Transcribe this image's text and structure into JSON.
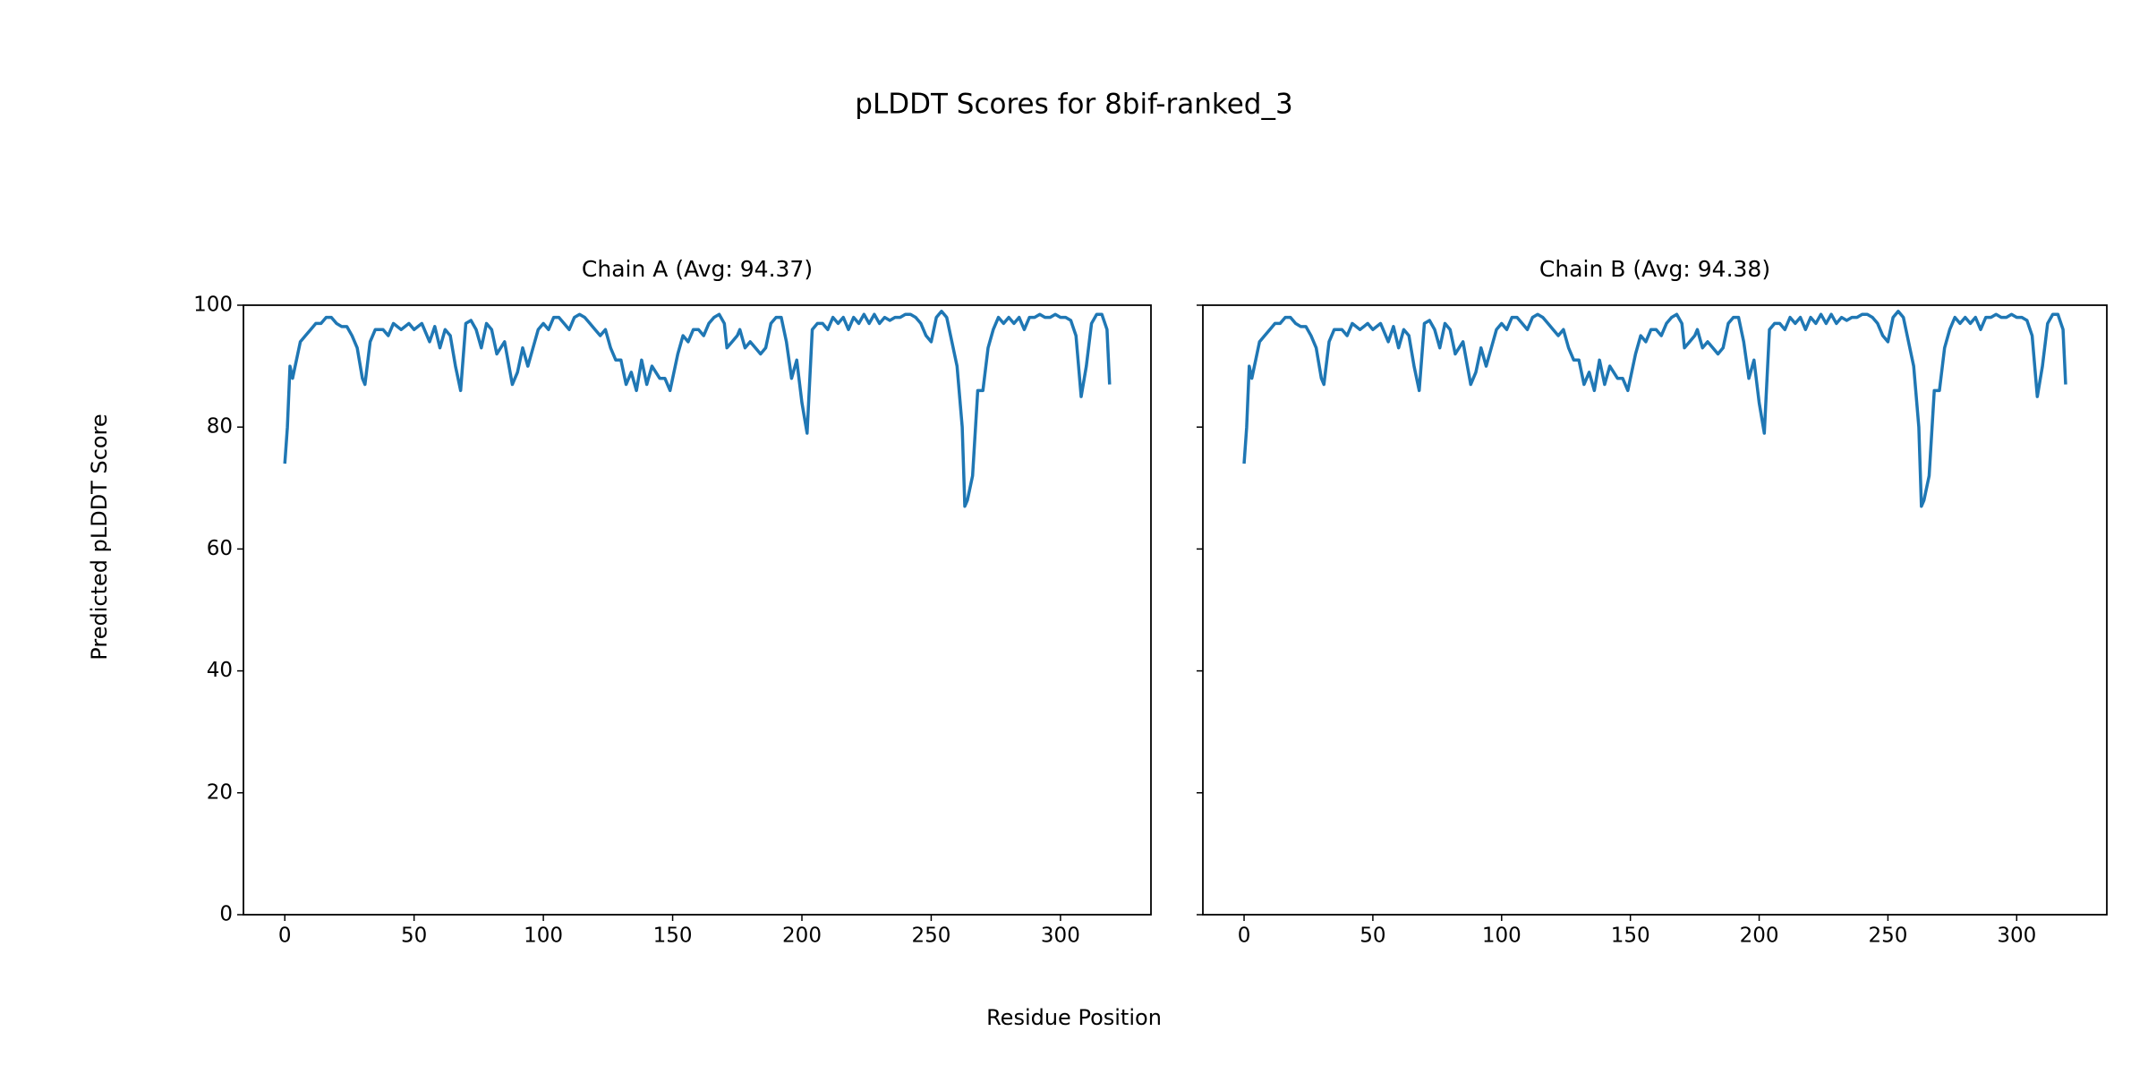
{
  "title": "pLDDT Scores for 8bif-ranked_3",
  "xlabel": "Residue Position",
  "ylabel": "Predicted pLDDT Score",
  "chart_data": [
    {
      "type": "line",
      "title": "Chain A (Avg: 94.37)",
      "xlim": [
        -16,
        335
      ],
      "ylim": [
        0,
        100
      ],
      "xticks": [
        0,
        50,
        100,
        150,
        200,
        250,
        300
      ],
      "yticks": [
        0,
        20,
        40,
        60,
        80,
        100
      ],
      "series": [
        {
          "color": "#1f77b4",
          "x": [
            0,
            1,
            2,
            3,
            4,
            6,
            8,
            10,
            12,
            14,
            16,
            18,
            20,
            22,
            24,
            26,
            28,
            30,
            31,
            33,
            35,
            38,
            40,
            42,
            45,
            48,
            50,
            53,
            56,
            58,
            60,
            62,
            64,
            66,
            68,
            70,
            72,
            74,
            76,
            78,
            80,
            82,
            85,
            88,
            90,
            92,
            94,
            96,
            98,
            100,
            102,
            104,
            106,
            108,
            110,
            112,
            114,
            116,
            118,
            120,
            122,
            124,
            126,
            128,
            130,
            132,
            134,
            136,
            138,
            140,
            142,
            145,
            147,
            149,
            152,
            154,
            156,
            158,
            160,
            162,
            164,
            166,
            168,
            170,
            171,
            173,
            175,
            176,
            178,
            180,
            182,
            184,
            186,
            188,
            190,
            192,
            194,
            196,
            198,
            200,
            202,
            204,
            206,
            208,
            210,
            212,
            214,
            216,
            218,
            220,
            222,
            224,
            226,
            228,
            230,
            232,
            234,
            236,
            238,
            240,
            242,
            244,
            246,
            248,
            250,
            252,
            254,
            256,
            258,
            260,
            262,
            263,
            264,
            266,
            268,
            270,
            272,
            274,
            276,
            278,
            280,
            282,
            284,
            286,
            288,
            290,
            292,
            294,
            296,
            298,
            300,
            302,
            304,
            306,
            308,
            310,
            312,
            314,
            316,
            318,
            319
          ],
          "values": [
            74,
            80,
            90,
            88,
            90,
            94,
            95,
            96,
            97,
            97,
            98,
            98,
            97,
            96.5,
            96.5,
            95,
            93,
            88,
            87,
            94,
            96,
            96,
            95,
            97,
            96,
            97,
            96,
            97,
            94,
            96.5,
            93,
            96,
            95,
            90,
            86,
            97,
            97.5,
            96,
            93,
            97,
            96,
            92,
            94,
            87,
            89,
            93,
            90,
            93,
            96,
            97,
            96,
            98,
            98,
            97,
            96,
            98,
            98.5,
            98,
            97,
            96,
            95,
            96,
            93,
            91,
            91,
            87,
            89,
            86,
            91,
            87,
            90,
            88,
            88,
            86,
            92,
            95,
            94,
            96,
            96,
            95,
            97,
            98,
            98.5,
            97,
            93,
            94,
            95,
            96,
            93,
            94,
            93,
            92,
            93,
            97,
            98,
            98,
            94,
            88,
            91,
            84,
            79,
            96,
            97,
            97,
            96,
            98,
            97,
            98,
            96,
            98,
            97,
            98.5,
            97,
            98.5,
            97,
            98,
            97.5,
            98,
            98,
            98.5,
            98.5,
            98,
            97,
            95,
            94,
            98,
            99,
            98,
            94,
            90,
            80,
            67,
            68,
            72,
            86,
            86,
            93,
            96,
            98,
            97,
            98,
            97,
            98,
            96,
            98,
            98,
            98.5,
            98,
            98,
            98.5,
            98,
            98,
            97.5,
            95,
            85,
            90,
            97,
            98.5,
            98.5,
            96,
            87
          ]
        }
      ]
    },
    {
      "type": "line",
      "title": "Chain B (Avg: 94.38)",
      "xlim": [
        -16,
        335
      ],
      "ylim": [
        0,
        100
      ],
      "xticks": [
        0,
        50,
        100,
        150,
        200,
        250,
        300
      ],
      "yticks": [
        0,
        20,
        40,
        60,
        80,
        100
      ],
      "series": [
        {
          "color": "#1f77b4",
          "x": [
            0,
            1,
            2,
            3,
            4,
            6,
            8,
            10,
            12,
            14,
            16,
            18,
            20,
            22,
            24,
            26,
            28,
            30,
            31,
            33,
            35,
            38,
            40,
            42,
            45,
            48,
            50,
            53,
            56,
            58,
            60,
            62,
            64,
            66,
            68,
            70,
            72,
            74,
            76,
            78,
            80,
            82,
            85,
            88,
            90,
            92,
            94,
            96,
            98,
            100,
            102,
            104,
            106,
            108,
            110,
            112,
            114,
            116,
            118,
            120,
            122,
            124,
            126,
            128,
            130,
            132,
            134,
            136,
            138,
            140,
            142,
            145,
            147,
            149,
            152,
            154,
            156,
            158,
            160,
            162,
            164,
            166,
            168,
            170,
            171,
            173,
            175,
            176,
            178,
            180,
            182,
            184,
            186,
            188,
            190,
            192,
            194,
            196,
            198,
            200,
            202,
            204,
            206,
            208,
            210,
            212,
            214,
            216,
            218,
            220,
            222,
            224,
            226,
            228,
            230,
            232,
            234,
            236,
            238,
            240,
            242,
            244,
            246,
            248,
            250,
            252,
            254,
            256,
            258,
            260,
            262,
            263,
            264,
            266,
            268,
            270,
            272,
            274,
            276,
            278,
            280,
            282,
            284,
            286,
            288,
            290,
            292,
            294,
            296,
            298,
            300,
            302,
            304,
            306,
            308,
            310,
            312,
            314,
            316,
            318,
            319
          ],
          "values": [
            74,
            80,
            90,
            88,
            90,
            94,
            95,
            96,
            97,
            97,
            98,
            98,
            97,
            96.5,
            96.5,
            95,
            93,
            88,
            87,
            94,
            96,
            96,
            95,
            97,
            96,
            97,
            96,
            97,
            94,
            96.5,
            93,
            96,
            95,
            90,
            86,
            97,
            97.5,
            96,
            93,
            97,
            96,
            92,
            94,
            87,
            89,
            93,
            90,
            93,
            96,
            97,
            96,
            98,
            98,
            97,
            96,
            98,
            98.5,
            98,
            97,
            96,
            95,
            96,
            93,
            91,
            91,
            87,
            89,
            86,
            91,
            87,
            90,
            88,
            88,
            86,
            92,
            95,
            94,
            96,
            96,
            95,
            97,
            98,
            98.5,
            97,
            93,
            94,
            95,
            96,
            93,
            94,
            93,
            92,
            93,
            97,
            98,
            98,
            94,
            88,
            91,
            84,
            79,
            96,
            97,
            97,
            96,
            98,
            97,
            98,
            96,
            98,
            97,
            98.5,
            97,
            98.5,
            97,
            98,
            97.5,
            98,
            98,
            98.5,
            98.5,
            98,
            97,
            95,
            94,
            98,
            99,
            98,
            94,
            90,
            80,
            67,
            68,
            72,
            86,
            86,
            93,
            96,
            98,
            97,
            98,
            97,
            98,
            96,
            98,
            98,
            98.5,
            98,
            98,
            98.5,
            98,
            98,
            97.5,
            95,
            85,
            90,
            97,
            98.5,
            98.5,
            96,
            87
          ]
        }
      ]
    }
  ]
}
